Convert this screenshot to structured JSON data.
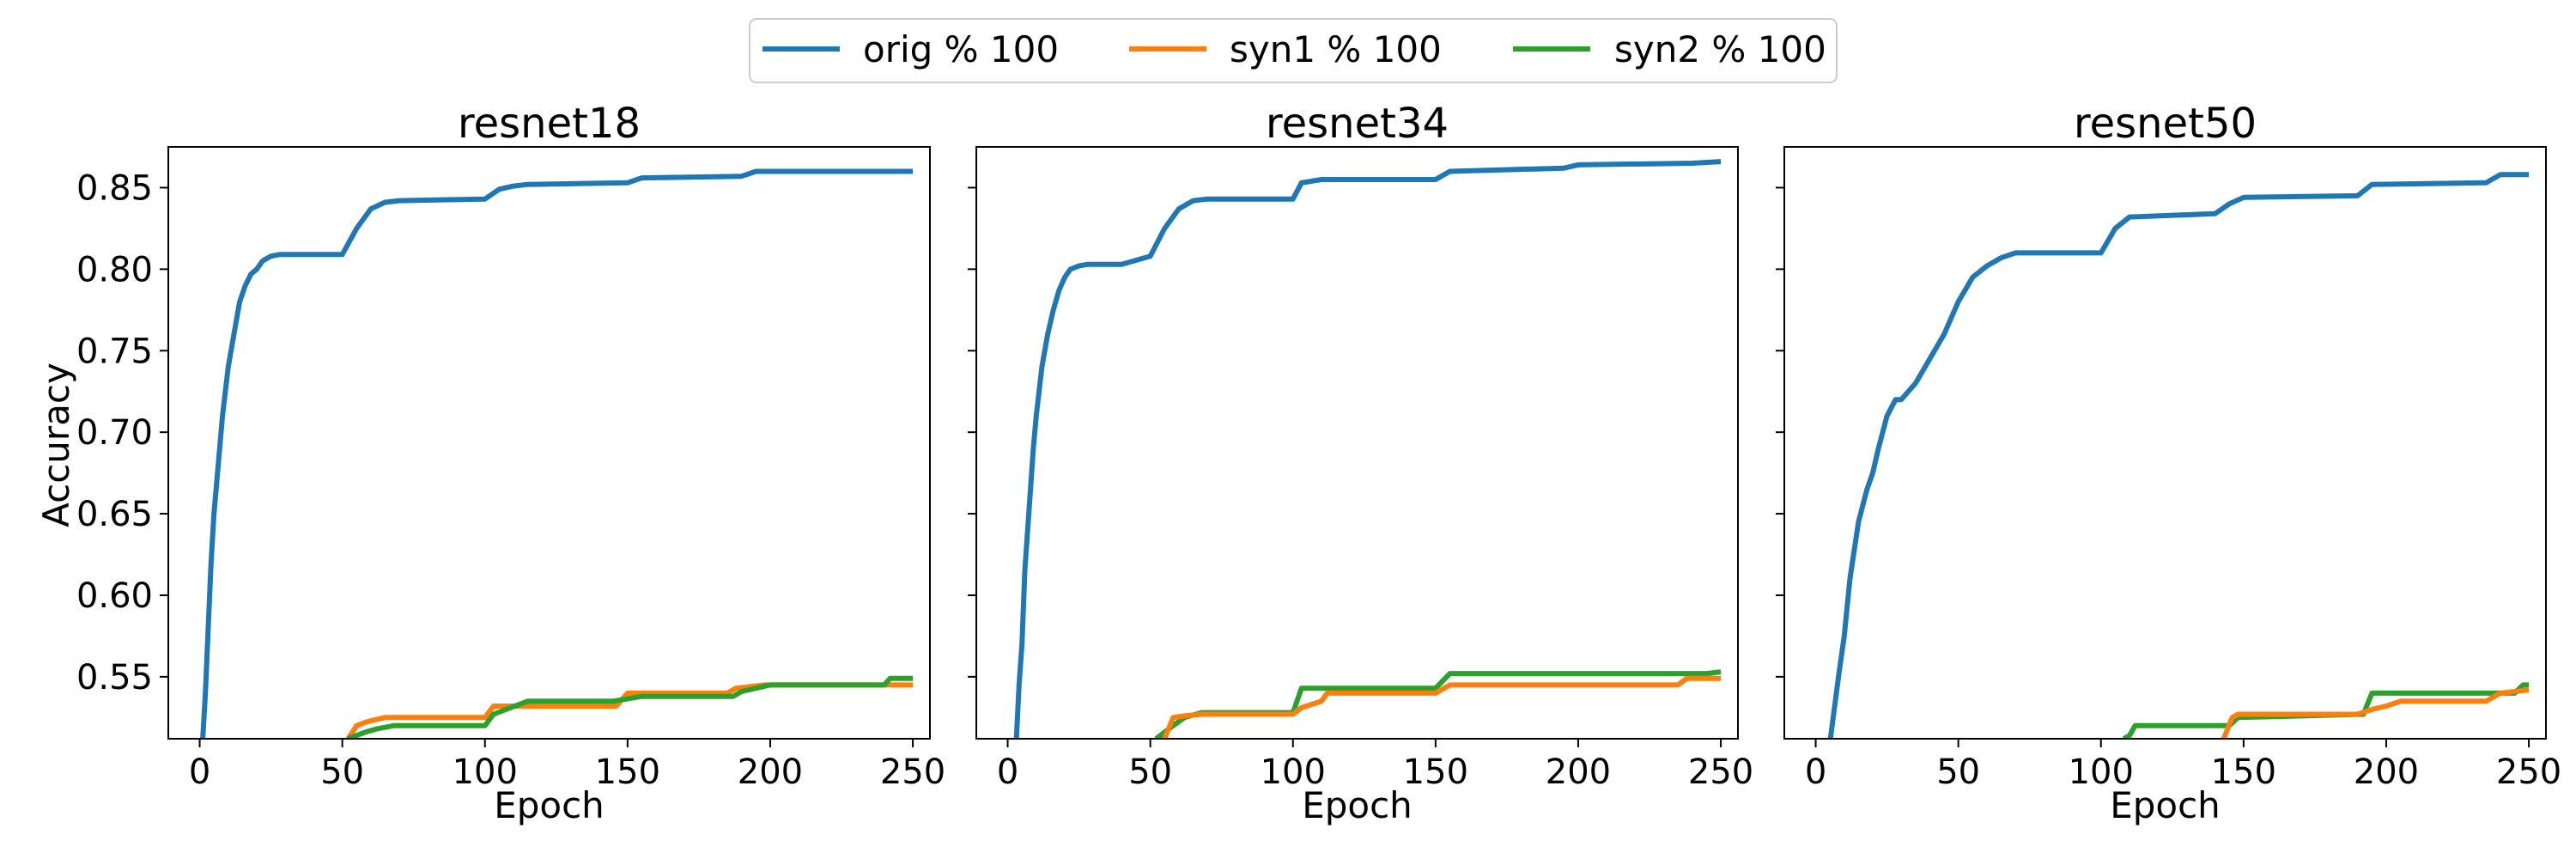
{
  "chart_data": [
    {
      "type": "line",
      "title": "resnet18",
      "xlabel": "Epoch",
      "ylabel": "Accuracy",
      "xlim": [
        -11,
        256
      ],
      "ylim": [
        0.512,
        0.875
      ],
      "xticks": [
        0,
        50,
        100,
        150,
        200,
        250
      ],
      "yticks": [
        0.55,
        0.6,
        0.65,
        0.7,
        0.75,
        0.8,
        0.85
      ],
      "ytick_labels": [
        "0.55",
        "0.60",
        "0.65",
        "0.70",
        "0.75",
        "0.80",
        "0.85"
      ],
      "series": [
        {
          "name": "orig % 100",
          "color": "#1f77b4",
          "x": [
            1,
            2,
            3,
            4,
            5,
            6,
            8,
            10,
            12,
            14,
            16,
            18,
            20,
            22,
            25,
            28,
            50,
            55,
            60,
            65,
            70,
            100,
            105,
            110,
            115,
            150,
            155,
            190,
            195,
            250
          ],
          "y": [
            0.51,
            0.54,
            0.58,
            0.62,
            0.65,
            0.67,
            0.71,
            0.74,
            0.76,
            0.78,
            0.79,
            0.797,
            0.8,
            0.805,
            0.808,
            0.809,
            0.809,
            0.825,
            0.837,
            0.841,
            0.842,
            0.843,
            0.849,
            0.851,
            0.852,
            0.853,
            0.856,
            0.857,
            0.86,
            0.86
          ]
        },
        {
          "name": "syn1 % 100",
          "color": "#ff7f0e",
          "x": [
            52,
            55,
            58,
            60,
            65,
            100,
            103,
            113,
            146,
            150,
            185,
            188,
            198,
            250
          ],
          "y": [
            0.512,
            0.52,
            0.522,
            0.523,
            0.525,
            0.525,
            0.532,
            0.532,
            0.532,
            0.54,
            0.54,
            0.543,
            0.545,
            0.545
          ]
        },
        {
          "name": "syn2 % 100",
          "color": "#2ca02c",
          "x": [
            52,
            55,
            58,
            62,
            68,
            100,
            103,
            115,
            145,
            155,
            187,
            190,
            200,
            240,
            242,
            250
          ],
          "y": [
            0.512,
            0.514,
            0.516,
            0.518,
            0.52,
            0.52,
            0.527,
            0.535,
            0.535,
            0.538,
            0.538,
            0.541,
            0.545,
            0.545,
            0.549,
            0.549
          ]
        }
      ]
    },
    {
      "type": "line",
      "title": "resnet34",
      "xlabel": "Epoch",
      "ylabel": "",
      "xlim": [
        -11,
        256
      ],
      "ylim": [
        0.512,
        0.875
      ],
      "xticks": [
        0,
        50,
        100,
        150,
        200,
        250
      ],
      "yticks": [
        0.55,
        0.6,
        0.65,
        0.7,
        0.75,
        0.8,
        0.85
      ],
      "ytick_labels": [],
      "series": [
        {
          "name": "orig % 100",
          "color": "#1f77b4",
          "x": [
            3,
            4,
            5,
            6,
            7,
            8,
            9,
            10,
            12,
            14,
            16,
            18,
            20,
            22,
            25,
            28,
            40,
            50,
            55,
            60,
            65,
            70,
            100,
            103,
            110,
            150,
            155,
            195,
            200,
            240,
            250
          ],
          "y": [
            0.51,
            0.545,
            0.57,
            0.615,
            0.64,
            0.665,
            0.69,
            0.71,
            0.74,
            0.76,
            0.775,
            0.787,
            0.795,
            0.8,
            0.802,
            0.803,
            0.803,
            0.808,
            0.825,
            0.837,
            0.842,
            0.843,
            0.843,
            0.853,
            0.855,
            0.855,
            0.86,
            0.862,
            0.864,
            0.865,
            0.866
          ]
        },
        {
          "name": "syn2 % 100",
          "color": "#2ca02c",
          "x": [
            52,
            55,
            58,
            62,
            68,
            100,
            103,
            150,
            155,
            245,
            250
          ],
          "y": [
            0.512,
            0.516,
            0.52,
            0.525,
            0.528,
            0.528,
            0.543,
            0.543,
            0.552,
            0.552,
            0.553
          ]
        },
        {
          "name": "syn1 % 100",
          "color": "#ff7f0e",
          "x": [
            55,
            58,
            62,
            68,
            100,
            103,
            110,
            112,
            150,
            155,
            235,
            238,
            250
          ],
          "y": [
            0.512,
            0.525,
            0.526,
            0.527,
            0.527,
            0.531,
            0.535,
            0.54,
            0.54,
            0.545,
            0.545,
            0.549,
            0.549
          ]
        }
      ]
    },
    {
      "type": "line",
      "title": "resnet50",
      "xlabel": "Epoch",
      "ylabel": "",
      "xlim": [
        -11,
        256
      ],
      "ylim": [
        0.512,
        0.875
      ],
      "xticks": [
        0,
        50,
        100,
        150,
        200,
        250
      ],
      "yticks": [
        0.55,
        0.6,
        0.65,
        0.7,
        0.75,
        0.8,
        0.85
      ],
      "ytick_labels": [],
      "series": [
        {
          "name": "orig % 100",
          "color": "#1f77b4",
          "x": [
            5,
            8,
            10,
            12,
            15,
            18,
            20,
            22,
            25,
            28,
            30,
            35,
            40,
            45,
            50,
            55,
            60,
            65,
            70,
            100,
            105,
            110,
            140,
            145,
            150,
            190,
            195,
            235,
            240,
            250
          ],
          "y": [
            0.51,
            0.55,
            0.575,
            0.61,
            0.645,
            0.665,
            0.675,
            0.69,
            0.71,
            0.72,
            0.72,
            0.73,
            0.745,
            0.76,
            0.78,
            0.795,
            0.802,
            0.807,
            0.81,
            0.81,
            0.825,
            0.832,
            0.834,
            0.84,
            0.844,
            0.845,
            0.852,
            0.853,
            0.858,
            0.858
          ]
        },
        {
          "name": "syn2 % 100",
          "color": "#2ca02c",
          "x": [
            108,
            110,
            112,
            145,
            148,
            192,
            195,
            245,
            248,
            250
          ],
          "y": [
            0.512,
            0.514,
            0.52,
            0.52,
            0.525,
            0.527,
            0.54,
            0.54,
            0.545,
            0.545
          ]
        },
        {
          "name": "syn1 % 100",
          "color": "#ff7f0e",
          "x": [
            143,
            146,
            148,
            190,
            195,
            200,
            205,
            235,
            240,
            250
          ],
          "y": [
            0.512,
            0.525,
            0.527,
            0.527,
            0.53,
            0.532,
            0.535,
            0.535,
            0.54,
            0.542
          ]
        }
      ]
    }
  ],
  "legend": {
    "entries": [
      {
        "label": "orig % 100",
        "color": "#1f77b4"
      },
      {
        "label": "syn1 % 100",
        "color": "#ff7f0e"
      },
      {
        "label": "syn2 % 100",
        "color": "#2ca02c"
      }
    ],
    "placement": "top-center"
  }
}
